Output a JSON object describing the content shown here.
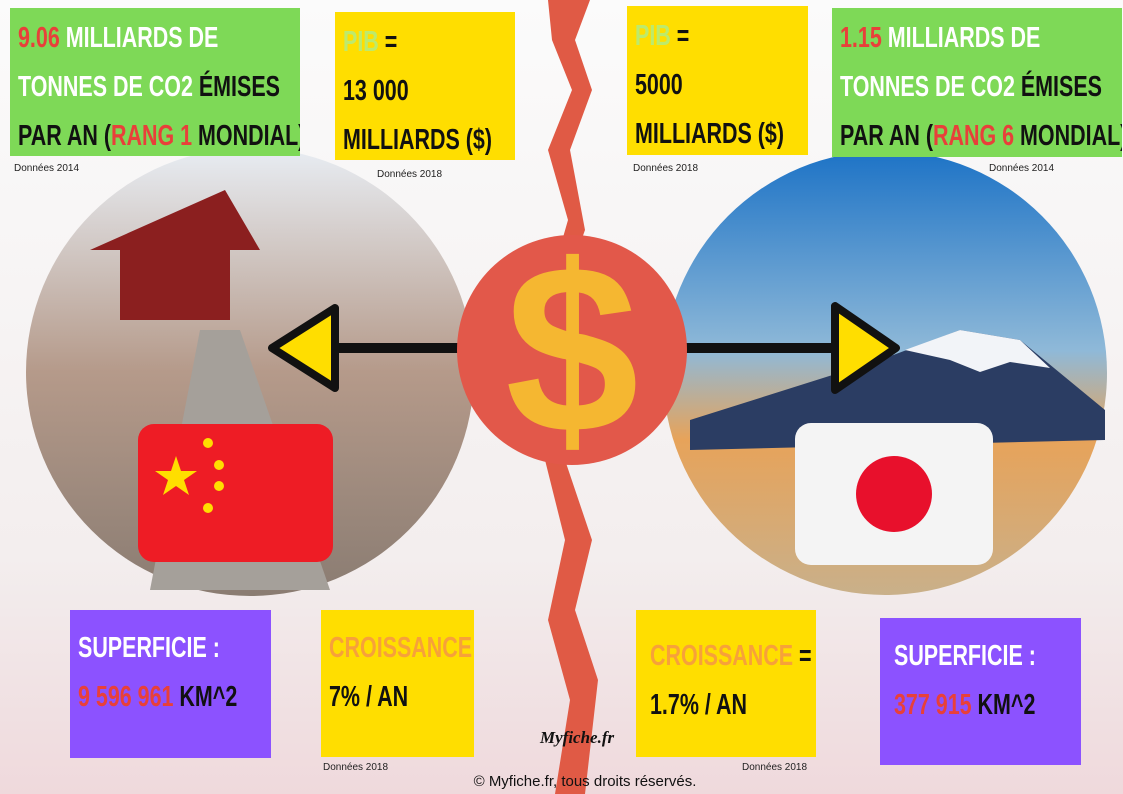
{
  "china": {
    "co2": {
      "lines": [
        [
          {
            "text": "9.06",
            "color": "red"
          },
          {
            "text": " MILLIARDS DE",
            "color": "white"
          }
        ],
        [
          {
            "text": "TONNES DE CO2",
            "color": "white"
          },
          {
            "text": " ÉMISES",
            "color": "black"
          }
        ],
        [
          {
            "text": "PAR AN (",
            "color": "black"
          },
          {
            "text": "RANG 1",
            "color": "red"
          },
          {
            "text": " MONDIAL)",
            "color": "black"
          }
        ]
      ],
      "source": "Données 2014"
    },
    "gdp": {
      "lines": [
        [
          {
            "text": "PIB",
            "color": "lime"
          },
          {
            "text": " =",
            "color": "black"
          }
        ],
        [
          {
            "text": "13 000",
            "color": "black"
          }
        ],
        [
          {
            "text": "MILLIARDS ($)",
            "color": "black"
          }
        ]
      ],
      "source": "Données 2018"
    },
    "area": {
      "lines": [
        [
          {
            "text": "SUPERFICIE :",
            "color": "white"
          }
        ],
        [
          {
            "text": "9 596 961",
            "color": "red"
          },
          {
            "text": " KM^2",
            "color": "black"
          }
        ]
      ]
    },
    "growth": {
      "lines": [
        [
          {
            "text": "CROISSANCE",
            "color": "orange"
          },
          {
            "text": " =",
            "color": "black"
          }
        ],
        [
          {
            "text": "7% / AN",
            "color": "black"
          }
        ]
      ],
      "source": "Données 2018"
    }
  },
  "japan": {
    "co2": {
      "lines": [
        [
          {
            "text": "1.15",
            "color": "red"
          },
          {
            "text": " MILLIARDS DE",
            "color": "white"
          }
        ],
        [
          {
            "text": "TONNES DE CO2",
            "color": "white"
          },
          {
            "text": " ÉMISES",
            "color": "black"
          }
        ],
        [
          {
            "text": "PAR AN (",
            "color": "black"
          },
          {
            "text": "RANG 6",
            "color": "red"
          },
          {
            "text": " MONDIAL)",
            "color": "black"
          }
        ]
      ],
      "source": "Données 2014"
    },
    "gdp": {
      "lines": [
        [
          {
            "text": "PIB",
            "color": "lime"
          },
          {
            "text": " =",
            "color": "black"
          }
        ],
        [
          {
            "text": "5000",
            "color": "black"
          }
        ],
        [
          {
            "text": "MILLIARDS ($)",
            "color": "black"
          }
        ]
      ],
      "source": "Données 2018"
    },
    "area": {
      "lines": [
        [
          {
            "text": "SUPERFICIE :",
            "color": "white"
          }
        ],
        [
          {
            "text": "377 915",
            "color": "red"
          },
          {
            "text": " KM^2",
            "color": "black"
          }
        ]
      ]
    },
    "growth": {
      "lines": [
        [
          {
            "text": "CROISSANCE",
            "color": "orange"
          },
          {
            "text": " =",
            "color": "black"
          }
        ],
        [
          {
            "text": "1.7% / AN",
            "color": "black"
          }
        ]
      ],
      "source": "Données 2018"
    }
  },
  "center_symbol": "$",
  "logo": "Myfiche.fr",
  "footer": "© Myfiche.fr, tous droits réservés."
}
